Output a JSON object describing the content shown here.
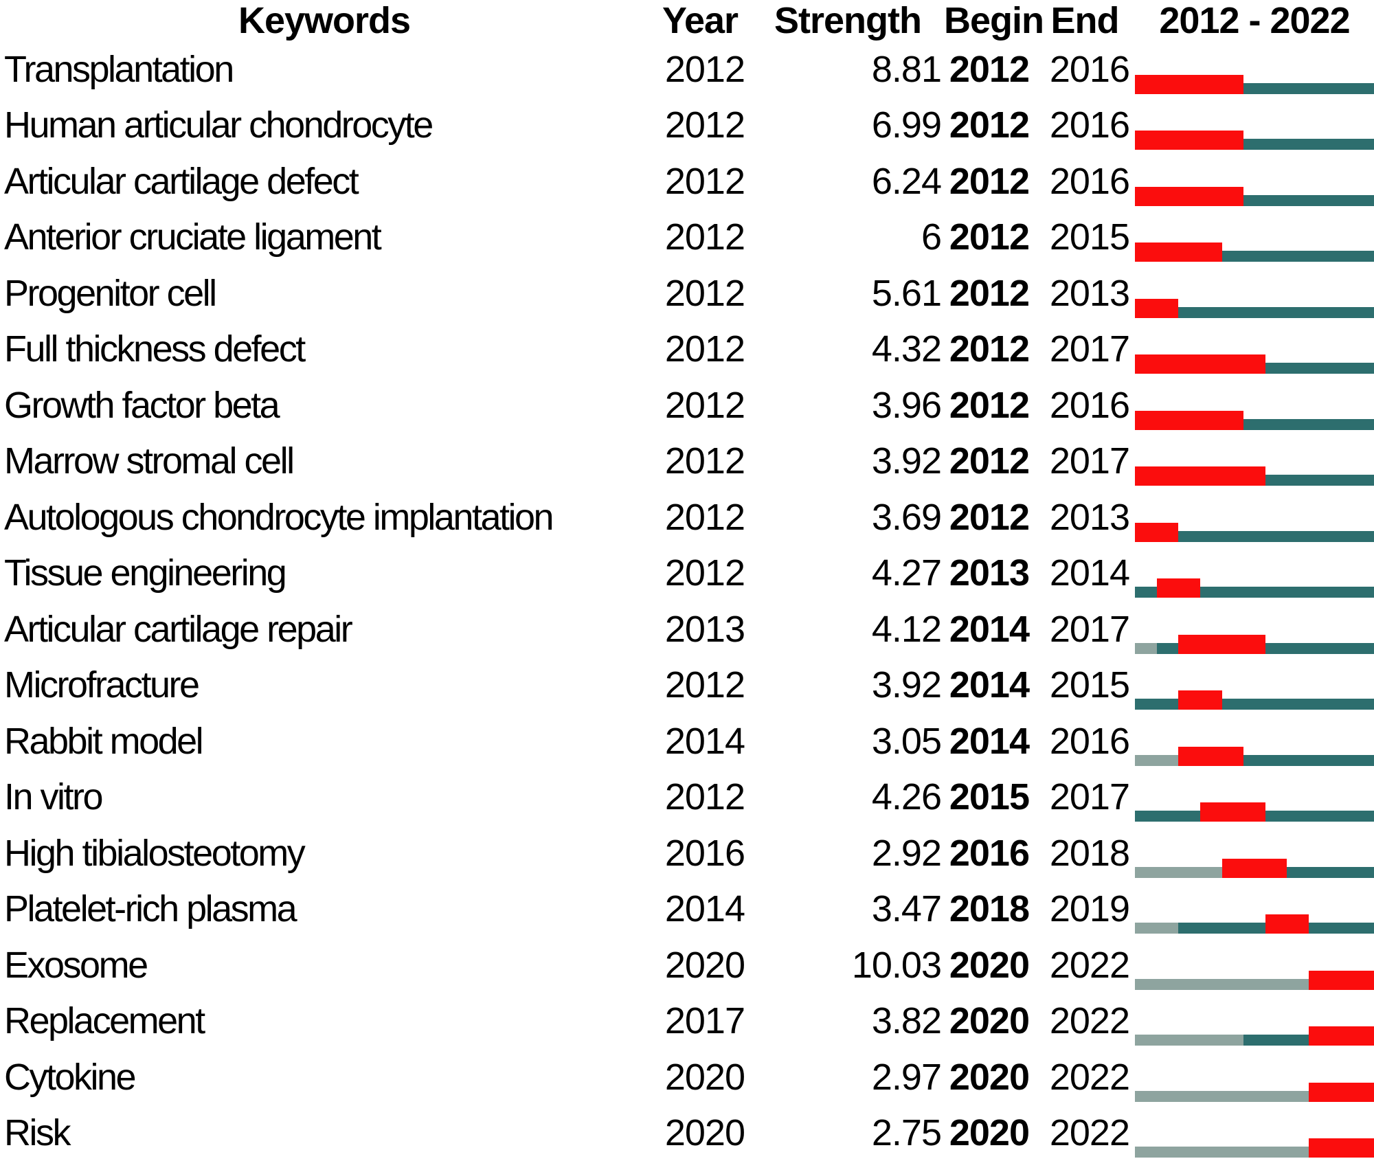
{
  "chart_data": {
    "type": "table",
    "columns": [
      "Keywords",
      "Year",
      "Strength",
      "Begin",
      "End",
      "2012 - 2022"
    ],
    "timeline_range": [
      2012,
      2022
    ],
    "colors": {
      "burst": "#fb0d0d",
      "active": "#2d6e6e",
      "inactive": "#8ea49f"
    },
    "rows": [
      {
        "keyword": "Transplantation",
        "year": 2012,
        "strength": "8.81",
        "begin": 2012,
        "end": 2016
      },
      {
        "keyword": "Human articular chondrocyte",
        "year": 2012,
        "strength": "6.99",
        "begin": 2012,
        "end": 2016
      },
      {
        "keyword": "Articular cartilage defect",
        "year": 2012,
        "strength": "6.24",
        "begin": 2012,
        "end": 2016
      },
      {
        "keyword": "Anterior cruciate ligament",
        "year": 2012,
        "strength": "6",
        "begin": 2012,
        "end": 2015
      },
      {
        "keyword": "Progenitor cell",
        "year": 2012,
        "strength": "5.61",
        "begin": 2012,
        "end": 2013
      },
      {
        "keyword": "Full thickness defect",
        "year": 2012,
        "strength": "4.32",
        "begin": 2012,
        "end": 2017
      },
      {
        "keyword": "Growth factor beta",
        "year": 2012,
        "strength": "3.96",
        "begin": 2012,
        "end": 2016
      },
      {
        "keyword": "Marrow stromal cell",
        "year": 2012,
        "strength": "3.92",
        "begin": 2012,
        "end": 2017
      },
      {
        "keyword": "Autologous chondrocyte implantation",
        "year": 2012,
        "strength": "3.69",
        "begin": 2012,
        "end": 2013
      },
      {
        "keyword": "Tissue engineering",
        "year": 2012,
        "strength": "4.27",
        "begin": 2013,
        "end": 2014
      },
      {
        "keyword": "Articular cartilage repair",
        "year": 2013,
        "strength": "4.12",
        "begin": 2014,
        "end": 2017
      },
      {
        "keyword": "Microfracture",
        "year": 2012,
        "strength": "3.92",
        "begin": 2014,
        "end": 2015
      },
      {
        "keyword": "Rabbit model",
        "year": 2014,
        "strength": "3.05",
        "begin": 2014,
        "end": 2016
      },
      {
        "keyword": "In vitro",
        "year": 2012,
        "strength": "4.26",
        "begin": 2015,
        "end": 2017
      },
      {
        "keyword": "High tibialosteotomy",
        "year": 2016,
        "strength": "2.92",
        "begin": 2016,
        "end": 2018
      },
      {
        "keyword": "Platelet-rich plasma",
        "year": 2014,
        "strength": "3.47",
        "begin": 2018,
        "end": 2019
      },
      {
        "keyword": "Exosome",
        "year": 2020,
        "strength": "10.03",
        "begin": 2020,
        "end": 2022
      },
      {
        "keyword": "Replacement",
        "year": 2017,
        "strength": "3.82",
        "begin": 2020,
        "end": 2022
      },
      {
        "keyword": "Cytokine",
        "year": 2020,
        "strength": "2.97",
        "begin": 2020,
        "end": 2022
      },
      {
        "keyword": "Risk",
        "year": 2020,
        "strength": "2.75",
        "begin": 2020,
        "end": 2022
      }
    ]
  }
}
